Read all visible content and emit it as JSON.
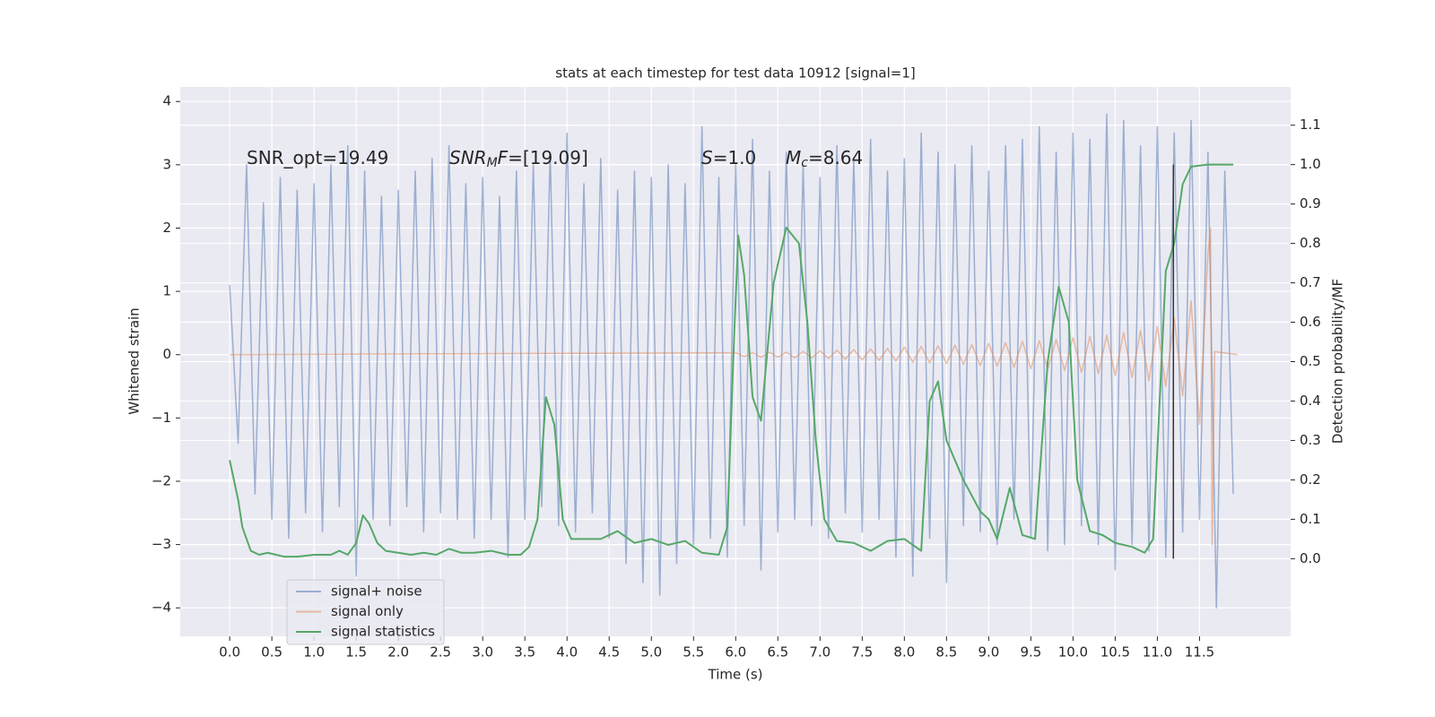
{
  "chart_data": {
    "type": "line",
    "title": "stats at each timestep for test data 10912 [signal=1]",
    "x_label": "Time (s)",
    "y_label": "Whitened strain",
    "y2_label": "Detection probability/MF",
    "background": "#eaeaf2",
    "grid": true,
    "legend": "lower left",
    "xlim": [
      -0.586,
      12.58
    ],
    "ylim": [
      -4.45,
      4.23
    ],
    "y2lim": [
      -0.197,
      1.197
    ],
    "xticks": [
      {
        "value": 0,
        "label": "0.0"
      },
      {
        "value": 0.5,
        "label": "0.5"
      },
      {
        "value": 1,
        "label": "1.0"
      },
      {
        "value": 1.5,
        "label": "1.5"
      },
      {
        "value": 2,
        "label": "2.0"
      },
      {
        "value": 2.5,
        "label": "2.5"
      },
      {
        "value": 3,
        "label": "3.0"
      },
      {
        "value": 3.5,
        "label": "3.5"
      },
      {
        "value": 4,
        "label": "4.0"
      },
      {
        "value": 4.5,
        "label": "4.5"
      },
      {
        "value": 5,
        "label": "5.0"
      },
      {
        "value": 5.5,
        "label": "5.5"
      },
      {
        "value": 6,
        "label": "6.0"
      },
      {
        "value": 6.5,
        "label": "6.5"
      },
      {
        "value": 7,
        "label": "7.0"
      },
      {
        "value": 7.5,
        "label": "7.5"
      },
      {
        "value": 8,
        "label": "8.0"
      },
      {
        "value": 8.5,
        "label": "8.5"
      },
      {
        "value": 9,
        "label": "9.0"
      },
      {
        "value": 9.5,
        "label": "9.5"
      },
      {
        "value": 10,
        "label": "10.0"
      },
      {
        "value": 10.5,
        "label": "10.5"
      },
      {
        "value": 11,
        "label": "11.0"
      },
      {
        "value": 11.5,
        "label": "11.5"
      }
    ],
    "yticks": [
      {
        "value": -4,
        "label": "−4"
      },
      {
        "value": -3,
        "label": "−3"
      },
      {
        "value": -2,
        "label": "−2"
      },
      {
        "value": -1,
        "label": "−1"
      },
      0,
      1,
      2,
      3,
      4
    ],
    "y2ticks": [
      {
        "value": 0,
        "label": "0.0"
      },
      {
        "value": 0.1,
        "label": "0.1"
      },
      {
        "value": 0.2,
        "label": "0.2"
      },
      {
        "value": 0.3,
        "label": "0.3"
      },
      {
        "value": 0.4,
        "label": "0.4"
      },
      {
        "value": 0.5,
        "label": "0.5"
      },
      {
        "value": 0.6,
        "label": "0.6"
      },
      {
        "value": 0.7,
        "label": "0.7"
      },
      {
        "value": 0.8,
        "label": "0.8"
      },
      {
        "value": 0.9,
        "label": "0.9"
      },
      {
        "value": 1,
        "label": "1.0"
      },
      {
        "value": 1.1,
        "label": "1.1"
      }
    ],
    "annotations": [
      [
        {
          "text": "SNR_opt=19.49"
        }
      ],
      [
        {
          "text": "SNR",
          "italic": true
        },
        {
          "text": "M",
          "italic": true,
          "sub": true
        },
        {
          "text": "F",
          "italic": true
        },
        {
          "text": "=[19.09]"
        }
      ],
      [
        {
          "text": "S",
          "italic": true
        },
        {
          "text": "=1.0"
        }
      ],
      [
        {
          "text": "M",
          "italic": true
        },
        {
          "text": "c",
          "italic": true,
          "sub": true
        },
        {
          "text": "=8.64"
        }
      ]
    ],
    "vline": {
      "x": 11.19,
      "y2range": [
        0,
        1
      ],
      "color": "#333333"
    },
    "series": [
      {
        "name": "signal+ noise",
        "color": "#4c72b0",
        "alpha": 0.5,
        "x": [
          0.0,
          0.1,
          0.2,
          0.3,
          0.4,
          0.5,
          0.6,
          0.7,
          0.8,
          0.9,
          1.0,
          1.1,
          1.2,
          1.3,
          1.4,
          1.5,
          1.6,
          1.7,
          1.8,
          1.9,
          2.0,
          2.1,
          2.2,
          2.3,
          2.4,
          2.5,
          2.6,
          2.7,
          2.8,
          2.9,
          3.0,
          3.1,
          3.2,
          3.3,
          3.4,
          3.5,
          3.6,
          3.7,
          3.8,
          3.9,
          4.0,
          4.1,
          4.2,
          4.3,
          4.4,
          4.5,
          4.6,
          4.7,
          4.8,
          4.9,
          5.0,
          5.1,
          5.2,
          5.3,
          5.4,
          5.5,
          5.6,
          5.7,
          5.8,
          5.9,
          6.0,
          6.1,
          6.2,
          6.3,
          6.4,
          6.5,
          6.6,
          6.7,
          6.8,
          6.9,
          7.0,
          7.1,
          7.2,
          7.3,
          7.4,
          7.5,
          7.6,
          7.7,
          7.8,
          7.9,
          8.0,
          8.1,
          8.2,
          8.3,
          8.4,
          8.5,
          8.6,
          8.7,
          8.8,
          8.9,
          9.0,
          9.1,
          9.2,
          9.3,
          9.4,
          9.5,
          9.6,
          9.7,
          9.8,
          9.9,
          10.0,
          10.1,
          10.2,
          10.3,
          10.4,
          10.5,
          10.6,
          10.7,
          10.8,
          10.9,
          11.0,
          11.1,
          11.2,
          11.3,
          11.4,
          11.5,
          11.6,
          11.7,
          11.8,
          11.9
        ],
        "values": [
          1.1,
          -1.4,
          3.0,
          -2.2,
          2.4,
          -2.6,
          2.8,
          -2.9,
          2.6,
          -2.5,
          2.7,
          -2.8,
          3.0,
          -2.4,
          3.3,
          -3.5,
          2.9,
          -2.6,
          2.5,
          -2.7,
          2.6,
          -2.4,
          2.9,
          -2.8,
          3.1,
          -2.5,
          3.3,
          -2.6,
          2.7,
          -2.9,
          2.8,
          -2.6,
          2.5,
          -3.2,
          2.9,
          -2.6,
          3.0,
          -2.4,
          3.2,
          -2.7,
          3.5,
          -2.8,
          2.7,
          -2.5,
          3.1,
          -2.9,
          2.6,
          -3.3,
          2.9,
          -3.6,
          2.8,
          -3.8,
          3.0,
          -3.3,
          2.7,
          -3.0,
          3.6,
          -2.9,
          2.8,
          -3.2,
          3.0,
          -2.7,
          3.4,
          -3.4,
          2.9,
          -2.8,
          3.2,
          -2.6,
          3.0,
          -2.7,
          2.8,
          -2.9,
          3.3,
          -2.5,
          3.1,
          -2.8,
          3.4,
          -2.6,
          2.9,
          -3.2,
          3.1,
          -3.5,
          3.5,
          -2.9,
          3.2,
          -3.6,
          3.0,
          -2.7,
          3.3,
          -2.8,
          2.9,
          -3.0,
          3.3,
          -2.6,
          3.4,
          -2.9,
          3.6,
          -3.1,
          3.2,
          -3.0,
          3.5,
          -2.7,
          3.4,
          -3.0,
          3.8,
          -3.4,
          3.7,
          -3.0,
          3.3,
          -3.1,
          3.6,
          -3.2,
          3.5,
          -2.8,
          3.7,
          -2.6,
          3.2,
          -4.0,
          2.9,
          -2.2
        ]
      },
      {
        "name": "signal only",
        "color": "#dd8452",
        "alpha": 0.5,
        "x": [
          0.0,
          6.0,
          6.1,
          6.2,
          6.3,
          6.4,
          6.5,
          6.6,
          6.7,
          6.8,
          6.9,
          7.0,
          7.1,
          7.2,
          7.3,
          7.4,
          7.5,
          7.6,
          7.7,
          7.8,
          7.9,
          8.0,
          8.1,
          8.2,
          8.3,
          8.4,
          8.5,
          8.6,
          8.7,
          8.8,
          8.9,
          9.0,
          9.1,
          9.2,
          9.3,
          9.4,
          9.5,
          9.6,
          9.7,
          9.8,
          9.9,
          10.0,
          10.1,
          10.2,
          10.3,
          10.4,
          10.5,
          10.6,
          10.7,
          10.8,
          10.9,
          11.0,
          11.1,
          11.2,
          11.3,
          11.4,
          11.5,
          11.6,
          11.63,
          11.65,
          11.68,
          11.95
        ],
        "values": [
          0.0,
          0.03,
          -0.03,
          0.03,
          -0.04,
          0.04,
          -0.04,
          0.04,
          -0.05,
          0.05,
          -0.05,
          0.06,
          -0.06,
          0.07,
          -0.07,
          0.08,
          -0.08,
          0.09,
          -0.09,
          0.1,
          -0.1,
          0.12,
          -0.12,
          0.13,
          -0.13,
          0.14,
          -0.14,
          0.15,
          -0.15,
          0.16,
          -0.17,
          0.18,
          -0.18,
          0.19,
          -0.2,
          0.21,
          -0.22,
          0.22,
          -0.23,
          0.24,
          -0.25,
          0.27,
          -0.28,
          0.29,
          -0.3,
          0.31,
          -0.33,
          0.35,
          -0.36,
          0.38,
          -0.41,
          0.45,
          -0.5,
          0.58,
          -0.65,
          0.85,
          -1.1,
          1.6,
          2.0,
          -3.0,
          0.05,
          0.0
        ]
      },
      {
        "name": "signal statistics",
        "color": "#55a868",
        "alpha": 1,
        "axis": "y2",
        "x": [
          0.0,
          0.1,
          0.15,
          0.25,
          0.35,
          0.45,
          0.55,
          0.65,
          0.8,
          1.0,
          1.2,
          1.3,
          1.4,
          1.5,
          1.58,
          1.65,
          1.75,
          1.85,
          2.0,
          2.15,
          2.3,
          2.45,
          2.6,
          2.75,
          2.9,
          3.1,
          3.3,
          3.45,
          3.55,
          3.65,
          3.75,
          3.85,
          3.95,
          4.05,
          4.2,
          4.4,
          4.6,
          4.8,
          5.0,
          5.2,
          5.4,
          5.6,
          5.8,
          5.9,
          5.97,
          6.03,
          6.1,
          6.2,
          6.3,
          6.45,
          6.6,
          6.75,
          6.85,
          6.95,
          7.05,
          7.2,
          7.4,
          7.6,
          7.8,
          8.0,
          8.2,
          8.3,
          8.4,
          8.5,
          8.7,
          8.9,
          9.0,
          9.1,
          9.25,
          9.4,
          9.55,
          9.7,
          9.83,
          9.95,
          10.05,
          10.2,
          10.35,
          10.5,
          10.7,
          10.85,
          10.95,
          11.1,
          11.2,
          11.3,
          11.4,
          11.6,
          11.9
        ],
        "values": [
          0.25,
          0.15,
          0.08,
          0.02,
          0.01,
          0.015,
          0.01,
          0.005,
          0.005,
          0.01,
          0.01,
          0.02,
          0.01,
          0.04,
          0.11,
          0.09,
          0.04,
          0.02,
          0.015,
          0.01,
          0.015,
          0.01,
          0.025,
          0.015,
          0.015,
          0.02,
          0.01,
          0.01,
          0.03,
          0.1,
          0.41,
          0.34,
          0.1,
          0.05,
          0.05,
          0.05,
          0.07,
          0.04,
          0.05,
          0.035,
          0.045,
          0.015,
          0.01,
          0.08,
          0.5,
          0.82,
          0.72,
          0.41,
          0.35,
          0.7,
          0.84,
          0.8,
          0.6,
          0.3,
          0.1,
          0.045,
          0.04,
          0.02,
          0.045,
          0.05,
          0.02,
          0.4,
          0.45,
          0.3,
          0.2,
          0.12,
          0.1,
          0.05,
          0.18,
          0.06,
          0.05,
          0.5,
          0.69,
          0.6,
          0.2,
          0.07,
          0.06,
          0.04,
          0.03,
          0.015,
          0.05,
          0.73,
          0.8,
          0.95,
          0.995,
          1.0,
          1.0
        ]
      }
    ]
  }
}
